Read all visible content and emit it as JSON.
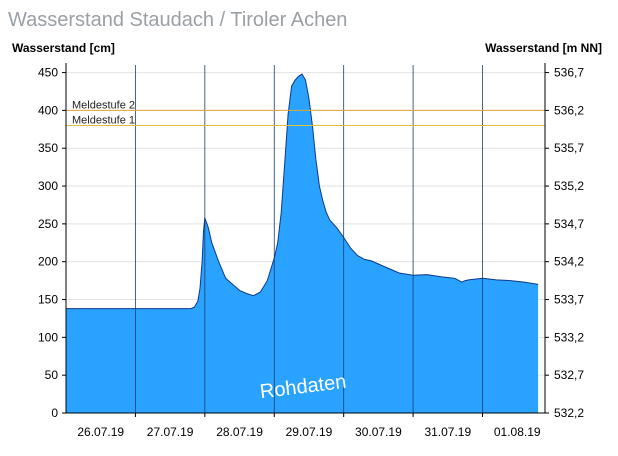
{
  "chart_data": {
    "type": "area",
    "title": "Wasserstand Staudach / Tiroler Achen",
    "ylabel_left": "Wasserstand [cm]",
    "ylabel_right": "Wasserstand [m NN]",
    "watermark": "Rohdaten",
    "ylim": [
      0,
      460
    ],
    "ylim_right": [
      532.2,
      536.8
    ],
    "yticks": [
      0,
      50,
      100,
      150,
      200,
      250,
      300,
      350,
      400,
      450
    ],
    "yticks_right": [
      "532,2",
      "532,7",
      "533,2",
      "533,7",
      "534,2",
      "534,7",
      "535,2",
      "535,7",
      "536,2",
      "536,7"
    ],
    "xlim": [
      0,
      6.9
    ],
    "x_day_boundaries": [
      1,
      2,
      3,
      4,
      5,
      6
    ],
    "x_tick_labels": [
      {
        "x": 0.5,
        "label": "26.07.19"
      },
      {
        "x": 1.5,
        "label": "27.07.19"
      },
      {
        "x": 2.5,
        "label": "28.07.19"
      },
      {
        "x": 3.5,
        "label": "29.07.19"
      },
      {
        "x": 4.5,
        "label": "30.07.19"
      },
      {
        "x": 5.5,
        "label": "31.07.19"
      },
      {
        "x": 6.5,
        "label": "01.08.19"
      }
    ],
    "thresholds": [
      {
        "name": "Meldestufe 2",
        "value": 400,
        "color": "#e0a830"
      },
      {
        "name": "Meldestufe 1",
        "value": 380,
        "color": "#e0c040"
      }
    ],
    "grid": true,
    "series": [
      {
        "color": "#29a3ff",
        "x": [
          0,
          0.5,
          1.0,
          1.5,
          1.8,
          1.85,
          1.9,
          1.93,
          1.96,
          1.98,
          2.0,
          2.05,
          2.1,
          2.2,
          2.3,
          2.4,
          2.5,
          2.6,
          2.7,
          2.8,
          2.9,
          3.0,
          3.05,
          3.1,
          3.15,
          3.2,
          3.25,
          3.3,
          3.35,
          3.4,
          3.45,
          3.5,
          3.55,
          3.6,
          3.65,
          3.7,
          3.75,
          3.8,
          3.9,
          4.0,
          4.1,
          4.2,
          4.3,
          4.4,
          4.5,
          4.6,
          4.8,
          5.0,
          5.2,
          5.4,
          5.6,
          5.7,
          5.75,
          5.8,
          6.0,
          6.2,
          6.4,
          6.6,
          6.8
        ],
        "values": [
          138,
          138,
          138,
          138,
          138,
          140,
          148,
          165,
          200,
          240,
          258,
          245,
          225,
          200,
          178,
          170,
          162,
          158,
          155,
          160,
          175,
          205,
          225,
          265,
          330,
          395,
          432,
          440,
          445,
          448,
          440,
          415,
          380,
          335,
          300,
          280,
          265,
          255,
          245,
          232,
          218,
          208,
          203,
          201,
          197,
          193,
          185,
          182,
          183,
          180,
          178,
          173,
          175,
          176,
          178,
          176,
          175,
          173,
          170
        ]
      }
    ]
  }
}
